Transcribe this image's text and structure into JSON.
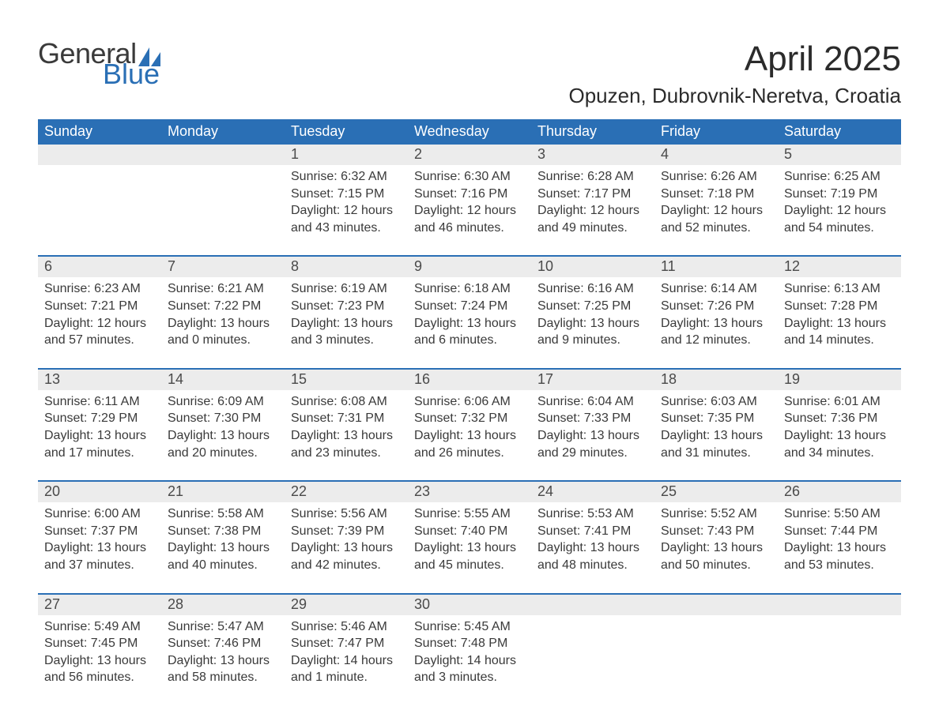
{
  "logo": {
    "text1": "General",
    "text2": "Blue",
    "sail_color": "#2a6fb5",
    "text1_color": "#3a3a3a"
  },
  "title": "April 2025",
  "location": "Opuzen, Dubrovnik-Neretva, Croatia",
  "colors": {
    "header_bg": "#2a6fb5",
    "header_text": "#ffffff",
    "daynum_bg": "#ececec",
    "week_border": "#2a6fb5",
    "body_text": "#3a3a3a",
    "background": "#ffffff"
  },
  "typography": {
    "title_fontsize": 44,
    "location_fontsize": 26,
    "dow_fontsize": 18,
    "daynum_fontsize": 18,
    "body_fontsize": 16,
    "logo_fontsize": 36
  },
  "days_of_week": [
    "Sunday",
    "Monday",
    "Tuesday",
    "Wednesday",
    "Thursday",
    "Friday",
    "Saturday"
  ],
  "labels": {
    "sunrise": "Sunrise: ",
    "sunset": "Sunset: ",
    "daylight": "Daylight: "
  },
  "weeks": [
    [
      {
        "n": "",
        "sunrise": "",
        "sunset": "",
        "daylight1": "",
        "daylight2": ""
      },
      {
        "n": "",
        "sunrise": "",
        "sunset": "",
        "daylight1": "",
        "daylight2": ""
      },
      {
        "n": "1",
        "sunrise": "6:32 AM",
        "sunset": "7:15 PM",
        "daylight1": "12 hours",
        "daylight2": "and 43 minutes."
      },
      {
        "n": "2",
        "sunrise": "6:30 AM",
        "sunset": "7:16 PM",
        "daylight1": "12 hours",
        "daylight2": "and 46 minutes."
      },
      {
        "n": "3",
        "sunrise": "6:28 AM",
        "sunset": "7:17 PM",
        "daylight1": "12 hours",
        "daylight2": "and 49 minutes."
      },
      {
        "n": "4",
        "sunrise": "6:26 AM",
        "sunset": "7:18 PM",
        "daylight1": "12 hours",
        "daylight2": "and 52 minutes."
      },
      {
        "n": "5",
        "sunrise": "6:25 AM",
        "sunset": "7:19 PM",
        "daylight1": "12 hours",
        "daylight2": "and 54 minutes."
      }
    ],
    [
      {
        "n": "6",
        "sunrise": "6:23 AM",
        "sunset": "7:21 PM",
        "daylight1": "12 hours",
        "daylight2": "and 57 minutes."
      },
      {
        "n": "7",
        "sunrise": "6:21 AM",
        "sunset": "7:22 PM",
        "daylight1": "13 hours",
        "daylight2": "and 0 minutes."
      },
      {
        "n": "8",
        "sunrise": "6:19 AM",
        "sunset": "7:23 PM",
        "daylight1": "13 hours",
        "daylight2": "and 3 minutes."
      },
      {
        "n": "9",
        "sunrise": "6:18 AM",
        "sunset": "7:24 PM",
        "daylight1": "13 hours",
        "daylight2": "and 6 minutes."
      },
      {
        "n": "10",
        "sunrise": "6:16 AM",
        "sunset": "7:25 PM",
        "daylight1": "13 hours",
        "daylight2": "and 9 minutes."
      },
      {
        "n": "11",
        "sunrise": "6:14 AM",
        "sunset": "7:26 PM",
        "daylight1": "13 hours",
        "daylight2": "and 12 minutes."
      },
      {
        "n": "12",
        "sunrise": "6:13 AM",
        "sunset": "7:28 PM",
        "daylight1": "13 hours",
        "daylight2": "and 14 minutes."
      }
    ],
    [
      {
        "n": "13",
        "sunrise": "6:11 AM",
        "sunset": "7:29 PM",
        "daylight1": "13 hours",
        "daylight2": "and 17 minutes."
      },
      {
        "n": "14",
        "sunrise": "6:09 AM",
        "sunset": "7:30 PM",
        "daylight1": "13 hours",
        "daylight2": "and 20 minutes."
      },
      {
        "n": "15",
        "sunrise": "6:08 AM",
        "sunset": "7:31 PM",
        "daylight1": "13 hours",
        "daylight2": "and 23 minutes."
      },
      {
        "n": "16",
        "sunrise": "6:06 AM",
        "sunset": "7:32 PM",
        "daylight1": "13 hours",
        "daylight2": "and 26 minutes."
      },
      {
        "n": "17",
        "sunrise": "6:04 AM",
        "sunset": "7:33 PM",
        "daylight1": "13 hours",
        "daylight2": "and 29 minutes."
      },
      {
        "n": "18",
        "sunrise": "6:03 AM",
        "sunset": "7:35 PM",
        "daylight1": "13 hours",
        "daylight2": "and 31 minutes."
      },
      {
        "n": "19",
        "sunrise": "6:01 AM",
        "sunset": "7:36 PM",
        "daylight1": "13 hours",
        "daylight2": "and 34 minutes."
      }
    ],
    [
      {
        "n": "20",
        "sunrise": "6:00 AM",
        "sunset": "7:37 PM",
        "daylight1": "13 hours",
        "daylight2": "and 37 minutes."
      },
      {
        "n": "21",
        "sunrise": "5:58 AM",
        "sunset": "7:38 PM",
        "daylight1": "13 hours",
        "daylight2": "and 40 minutes."
      },
      {
        "n": "22",
        "sunrise": "5:56 AM",
        "sunset": "7:39 PM",
        "daylight1": "13 hours",
        "daylight2": "and 42 minutes."
      },
      {
        "n": "23",
        "sunrise": "5:55 AM",
        "sunset": "7:40 PM",
        "daylight1": "13 hours",
        "daylight2": "and 45 minutes."
      },
      {
        "n": "24",
        "sunrise": "5:53 AM",
        "sunset": "7:41 PM",
        "daylight1": "13 hours",
        "daylight2": "and 48 minutes."
      },
      {
        "n": "25",
        "sunrise": "5:52 AM",
        "sunset": "7:43 PM",
        "daylight1": "13 hours",
        "daylight2": "and 50 minutes."
      },
      {
        "n": "26",
        "sunrise": "5:50 AM",
        "sunset": "7:44 PM",
        "daylight1": "13 hours",
        "daylight2": "and 53 minutes."
      }
    ],
    [
      {
        "n": "27",
        "sunrise": "5:49 AM",
        "sunset": "7:45 PM",
        "daylight1": "13 hours",
        "daylight2": "and 56 minutes."
      },
      {
        "n": "28",
        "sunrise": "5:47 AM",
        "sunset": "7:46 PM",
        "daylight1": "13 hours",
        "daylight2": "and 58 minutes."
      },
      {
        "n": "29",
        "sunrise": "5:46 AM",
        "sunset": "7:47 PM",
        "daylight1": "14 hours",
        "daylight2": "and 1 minute."
      },
      {
        "n": "30",
        "sunrise": "5:45 AM",
        "sunset": "7:48 PM",
        "daylight1": "14 hours",
        "daylight2": "and 3 minutes."
      },
      {
        "n": "",
        "sunrise": "",
        "sunset": "",
        "daylight1": "",
        "daylight2": ""
      },
      {
        "n": "",
        "sunrise": "",
        "sunset": "",
        "daylight1": "",
        "daylight2": ""
      },
      {
        "n": "",
        "sunrise": "",
        "sunset": "",
        "daylight1": "",
        "daylight2": ""
      }
    ]
  ]
}
